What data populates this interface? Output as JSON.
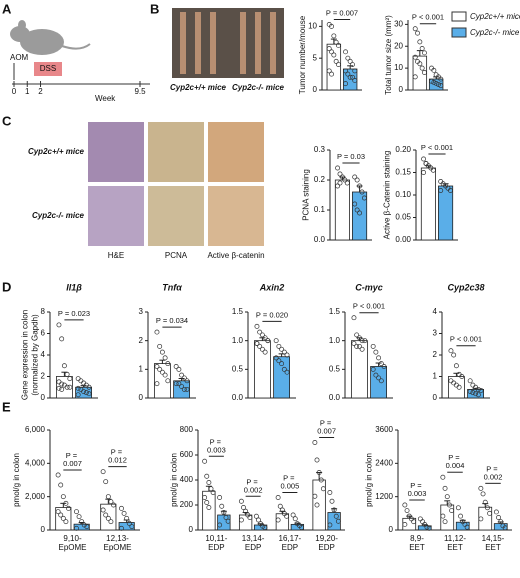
{
  "figure": {
    "panel_labels": [
      "A",
      "B",
      "C",
      "D",
      "E"
    ],
    "timeline": {
      "agent": "AOM",
      "treatment": "DSS",
      "ticks": [
        0,
        1,
        2,
        9.5
      ],
      "xlabel": "Week"
    },
    "legend": [
      {
        "name": "Cyp2c+/+ mice",
        "color": "#ffffff"
      },
      {
        "name": "Cyp2c-/- mice",
        "color": "#5aaee8"
      }
    ],
    "image_labels_B": [
      "Cyp2c+/+ mice",
      "Cyp2c-/- mice"
    ],
    "image_labels_C": {
      "rows": [
        "Cyp2c+/+ mice",
        "Cyp2c-/- mice"
      ],
      "columns": [
        "H&E",
        "PCNA",
        "Active β-catenin"
      ]
    }
  },
  "chart_data": [
    {
      "type": "bar",
      "ylabel": [
        "Tumor number/mouse"
      ],
      "ylim": [
        0,
        11
      ],
      "yticks": [
        0,
        5,
        10
      ],
      "categories": [
        null
      ],
      "pvalues": [
        "P = 0.007"
      ],
      "series": [
        {
          "color": "#ffffff",
          "values": [
            7.2
          ],
          "errors": [
            0.8
          ],
          "points": [
            [
              10.3,
              10,
              8.5,
              7.5,
              7,
              6.5,
              6,
              5.5,
              4.5,
              4,
              3,
              2.5
            ]
          ]
        },
        {
          "color": "#5aaee8",
          "values": [
            3.3
          ],
          "errors": [
            0.5
          ],
          "points": [
            [
              6,
              5,
              4.5,
              4,
              3,
              3,
              2.5,
              2,
              2,
              1.5,
              1
            ]
          ]
        }
      ]
    },
    {
      "type": "bar",
      "ylabel": [
        "Total tumor size (mm²)"
      ],
      "ylim": [
        0,
        32
      ],
      "yticks": [
        0,
        10,
        20,
        30
      ],
      "categories": [
        null
      ],
      "pvalues": [
        "P < 0.001"
      ],
      "series": [
        {
          "color": "#ffffff",
          "values": [
            15.5
          ],
          "errors": [
            2.5
          ],
          "points": [
            [
              28,
              26,
              22,
              19,
              17,
              15,
              13,
              12,
              10,
              8,
              6
            ]
          ]
        },
        {
          "color": "#5aaee8",
          "values": [
            5
          ],
          "errors": [
            1
          ],
          "points": [
            [
              10,
              9,
              7,
              6,
              5,
              4,
              3.5,
              3,
              2.5,
              2
            ]
          ]
        }
      ]
    },
    {
      "type": "bar",
      "ylabel": [
        "PCNA staining"
      ],
      "ylim": [
        0,
        0.3
      ],
      "yticks": [
        {
          "value": 0,
          "label": "0.0"
        },
        0.1,
        0.2,
        0.3
      ],
      "categories": [
        null
      ],
      "pvalues": [
        "P = 0.03"
      ],
      "series": [
        {
          "color": "#ffffff",
          "values": [
            0.2
          ],
          "errors": [
            0.01
          ],
          "points": [
            [
              0.24,
              0.22,
              0.21,
              0.2,
              0.19,
              0.18,
              0.19
            ]
          ]
        },
        {
          "color": "#5aaee8",
          "values": [
            0.16
          ],
          "errors": [
            0.02
          ],
          "points": [
            [
              0.21,
              0.2,
              0.18,
              0.16,
              0.14,
              0.12,
              0.1,
              0.09
            ]
          ]
        }
      ]
    },
    {
      "type": "bar",
      "ylabel": [
        "Active β-Catenin staining"
      ],
      "ylim": [
        0,
        0.2
      ],
      "yticks": [
        {
          "value": 0,
          "label": "0.00"
        },
        0.05,
        {
          "value": 0.1,
          "label": "0.10"
        },
        0.15,
        {
          "value": 0.2,
          "label": "0.20"
        }
      ],
      "categories": [
        null
      ],
      "pvalues": [
        "P < 0.001"
      ],
      "series": [
        {
          "color": "#ffffff",
          "values": [
            0.16
          ],
          "errors": [
            0.005
          ],
          "points": [
            [
              0.18,
              0.17,
              0.165,
              0.16,
              0.155,
              0.15,
              0.17
            ]
          ]
        },
        {
          "color": "#5aaee8",
          "values": [
            0.12
          ],
          "errors": [
            0.005
          ],
          "points": [
            [
              0.13,
              0.125,
              0.12,
              0.115,
              0.11,
              0.11
            ]
          ]
        }
      ]
    },
    {
      "type": "bar",
      "title": "Il1β",
      "ylabel": [
        "Gene expression in colon",
        "(normalized by Gapdh)"
      ],
      "ylim": [
        0,
        8
      ],
      "yticks": [
        0,
        2,
        4,
        6,
        8
      ],
      "categories": [
        null
      ],
      "pvalues": [
        "P = 0.023"
      ],
      "series": [
        {
          "color": "#ffffff",
          "values": [
            2.0
          ],
          "errors": [
            0.4
          ],
          "points": [
            [
              6.8,
              5.5,
              3,
              2.2,
              1.8,
              1.5,
              1.3,
              1.2,
              1,
              1,
              0.9,
              0.8
            ]
          ]
        },
        {
          "color": "#5aaee8",
          "values": [
            1.0
          ],
          "errors": [
            0.15
          ],
          "points": [
            [
              1.8,
              1.6,
              1.4,
              1.2,
              1,
              0.9,
              0.8,
              0.6,
              0.5,
              0.4,
              0.3
            ]
          ]
        }
      ]
    },
    {
      "type": "bar",
      "title": "Tnfα",
      "ylim": [
        0,
        3
      ],
      "yticks": [
        0,
        1,
        2,
        3
      ],
      "categories": [
        null
      ],
      "pvalues": [
        "P = 0.034"
      ],
      "series": [
        {
          "color": "#ffffff",
          "values": [
            1.2
          ],
          "errors": [
            0.12
          ],
          "points": [
            [
              2.3,
              1.8,
              1.6,
              1.4,
              1.2,
              1.1,
              1,
              0.9,
              0.8,
              0.6,
              0.5
            ]
          ]
        },
        {
          "color": "#5aaee8",
          "values": [
            0.6
          ],
          "errors": [
            0.08
          ],
          "points": [
            [
              1.1,
              1,
              0.8,
              0.7,
              0.6,
              0.5,
              0.5,
              0.4,
              0.3,
              0.3
            ]
          ]
        }
      ]
    },
    {
      "type": "bar",
      "title": "Axin2",
      "ylim": [
        0,
        1.5
      ],
      "yticks": [
        {
          "value": 0,
          "label": "0.0"
        },
        0.5,
        {
          "value": 1,
          "label": "1.0"
        },
        1.5
      ],
      "categories": [
        null
      ],
      "pvalues": [
        "P = 0.020"
      ],
      "series": [
        {
          "color": "#ffffff",
          "values": [
            1.0
          ],
          "errors": [
            0.05
          ],
          "points": [
            [
              1.25,
              1.15,
              1.1,
              1.05,
              1,
              0.95,
              0.9,
              0.85,
              0.8,
              1.0,
              0.95
            ]
          ]
        },
        {
          "color": "#5aaee8",
          "values": [
            0.72
          ],
          "errors": [
            0.05
          ],
          "points": [
            [
              1.0,
              0.9,
              0.85,
              0.8,
              0.75,
              0.7,
              0.65,
              0.6,
              0.5,
              0.45
            ]
          ]
        }
      ]
    },
    {
      "type": "bar",
      "title": "C-myc",
      "ylim": [
        0,
        1.5
      ],
      "yticks": [
        {
          "value": 0,
          "label": "0.0"
        },
        0.5,
        {
          "value": 1,
          "label": "1.0"
        },
        1.5
      ],
      "categories": [
        null
      ],
      "pvalues": [
        "P < 0.001"
      ],
      "series": [
        {
          "color": "#ffffff",
          "values": [
            1.0
          ],
          "errors": [
            0.05
          ],
          "points": [
            [
              1.4,
              1.1,
              1.05,
              1,
              1,
              0.95,
              0.9,
              0.9,
              0.85
            ]
          ]
        },
        {
          "color": "#5aaee8",
          "values": [
            0.55
          ],
          "errors": [
            0.06
          ],
          "points": [
            [
              0.9,
              0.8,
              0.7,
              0.6,
              0.55,
              0.5,
              0.4,
              0.35,
              0.3
            ]
          ]
        }
      ]
    },
    {
      "type": "bar",
      "title": "Cyp2c38",
      "ylim": [
        0,
        4
      ],
      "yticks": [
        0,
        1,
        2,
        3,
        4
      ],
      "categories": [
        null
      ],
      "pvalues": [
        "P < 0.001"
      ],
      "series": [
        {
          "color": "#ffffff",
          "values": [
            1.0
          ],
          "errors": [
            0.15
          ],
          "points": [
            [
              2.2,
              2,
              1.5,
              1.1,
              1,
              0.8,
              0.7,
              0.6,
              0.5
            ]
          ]
        },
        {
          "color": "#5aaee8",
          "values": [
            0.4
          ],
          "errors": [
            0.05
          ],
          "points": [
            [
              0.8,
              0.6,
              0.5,
              0.4,
              0.35,
              0.3,
              0.25,
              0.2,
              0.15
            ]
          ]
        }
      ]
    },
    {
      "type": "bar",
      "ylabel": [
        "pmol/g in colon"
      ],
      "ylim": [
        0,
        6000
      ],
      "yticks": [
        0,
        {
          "value": 2000,
          "label": "2,000"
        },
        {
          "value": 4000,
          "label": "4,000"
        },
        {
          "value": 6000,
          "label": "6,000"
        }
      ],
      "categories": [
        "9,10-EpOME",
        "12,13-EpOME"
      ],
      "pvalues": [
        "P = 0.007",
        "P = 0.012"
      ],
      "series": [
        {
          "color": "#ffffff",
          "values": [
            1350,
            1550
          ],
          "errors": [
            250,
            300
          ],
          "points": [
            [
              3300,
              2700,
              2000,
              1600,
              1300,
              1100,
              900,
              700,
              500
            ],
            [
              3500,
              2900,
              2000,
              1700,
              1500,
              1200,
              900,
              700,
              500
            ]
          ]
        },
        {
          "color": "#5aaee8",
          "values": [
            350,
            450
          ],
          "errors": [
            100,
            150
          ],
          "points": [
            [
              1100,
              800,
              500,
              300,
              200,
              100
            ],
            [
              1300,
              1000,
              700,
              400,
              200,
              100
            ]
          ]
        }
      ]
    },
    {
      "type": "bar",
      "ylabel": [
        "pmol/g in colon"
      ],
      "ylim": [
        0,
        800
      ],
      "yticks": [
        0,
        200,
        400,
        600,
        800
      ],
      "categories": [
        "10,11-EDP",
        "13,14-EDP",
        "16,17-EDP",
        "19,20-EDP"
      ],
      "pvalues": [
        "P = 0.003",
        "P = 0.002",
        "P = 0.005",
        "P = 0.007"
      ],
      "series": [
        {
          "color": "#ffffff",
          "values": [
            310,
            120,
            130,
            400
          ],
          "errors": [
            40,
            20,
            20,
            60
          ],
          "points": [
            [
              550,
              430,
              380,
              330,
              300,
              260,
              220,
              180
            ],
            [
              230,
              180,
              150,
              120,
              100,
              80
            ],
            [
              260,
              190,
              160,
              130,
              110,
              80
            ],
            [
              700,
              560,
              460,
              400,
              330,
              270,
              200
            ]
          ]
        },
        {
          "color": "#5aaee8",
          "values": [
            120,
            40,
            45,
            140
          ],
          "errors": [
            30,
            10,
            10,
            30
          ],
          "points": [
            [
              260,
              190,
              140,
              100,
              70,
              40
            ],
            [
              110,
              80,
              50,
              30,
              20
            ],
            [
              120,
              90,
              50,
              35,
              20
            ],
            [
              300,
              230,
              160,
              110,
              70,
              40
            ]
          ]
        }
      ]
    },
    {
      "type": "bar",
      "ylabel": [
        "pmol/g in colon"
      ],
      "ylim": [
        0,
        3600
      ],
      "yticks": [
        0,
        1200,
        2400,
        3600
      ],
      "categories": [
        "8,9-EET",
        "11,12-EET",
        "14,15-EET"
      ],
      "pvalues": [
        "P = 0.003",
        "P = 0.004",
        "P = 0.002"
      ],
      "series": [
        {
          "color": "#ffffff",
          "values": [
            420,
            900,
            820
          ],
          "errors": [
            80,
            150,
            130
          ],
          "points": [
            [
              900,
              700,
              500,
              400,
              300,
              200
            ],
            [
              1900,
              1500,
              1200,
              900,
              700,
              500,
              300
            ],
            [
              1500,
              1300,
              1000,
              800,
              600,
              400
            ]
          ]
        },
        {
          "color": "#5aaee8",
          "values": [
            150,
            280,
            230
          ],
          "errors": [
            40,
            70,
            60
          ],
          "points": [
            [
              400,
              300,
              200,
              100,
              60
            ],
            [
              800,
              500,
              300,
              200,
              100
            ],
            [
              650,
              450,
              300,
              150,
              80
            ]
          ]
        }
      ]
    }
  ]
}
